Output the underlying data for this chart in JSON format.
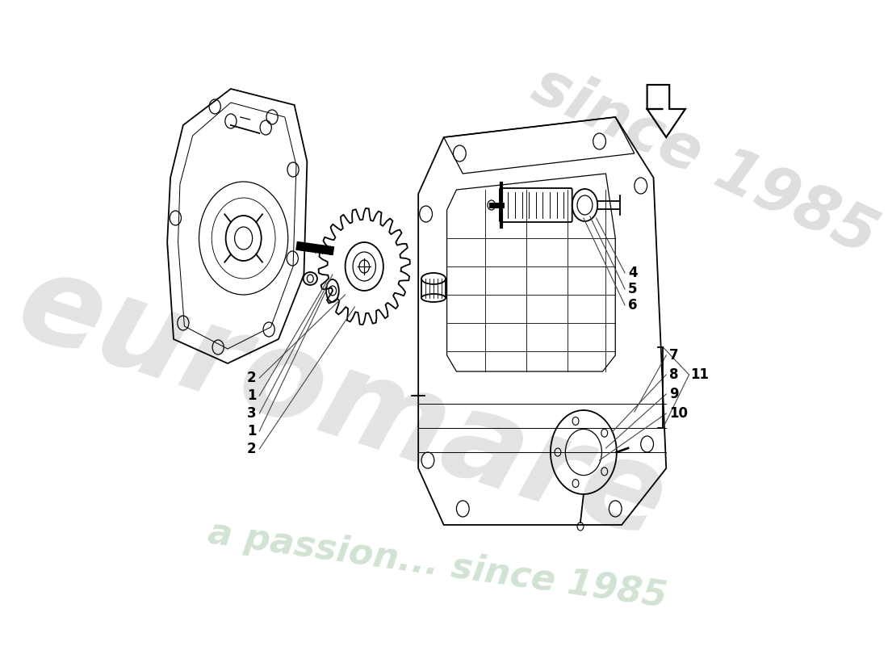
{
  "background_color": "#ffffff",
  "line_color": "#000000",
  "thin_line": "#333333",
  "label_color": "#000000",
  "watermark_main_color": "#d8d8d8",
  "watermark_sub_color": "#c8dcc8",
  "wm_text": "euromare",
  "wm_sub": "a passion... since 1985",
  "wm_since": "since 1985",
  "left_labels": [
    "2",
    "1",
    "3",
    "1",
    "2"
  ],
  "right_upper_labels": [
    "4",
    "5",
    "6"
  ],
  "right_lower_labels": [
    "7",
    "8",
    "9",
    "10"
  ],
  "bracket_label": "11",
  "figsize": [
    11.0,
    8.0
  ],
  "dpi": 100
}
